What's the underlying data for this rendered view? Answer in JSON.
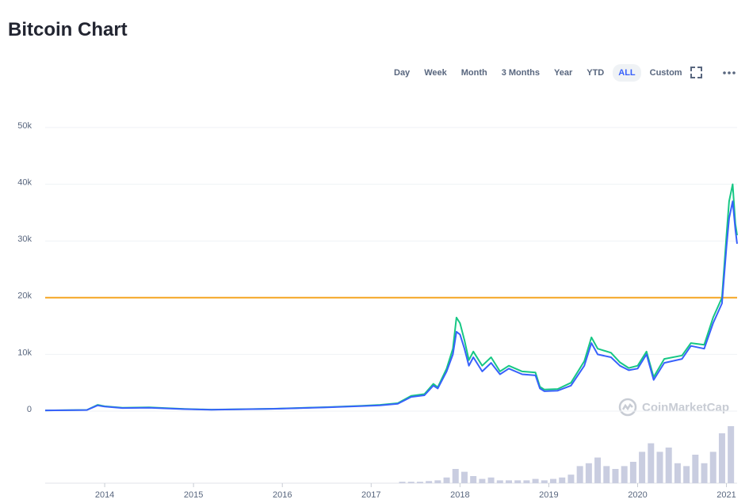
{
  "title": "Bitcoin Chart",
  "toolbar": {
    "buttons": [
      "Day",
      "Week",
      "Month",
      "3 Months",
      "Year",
      "YTD",
      "ALL",
      "Custom"
    ],
    "active": "ALL"
  },
  "chart_data": {
    "type": "line",
    "watermark": "CoinMarketCap",
    "x": [
      2013.33,
      2013.8,
      2013.92,
      2014.0,
      2014.2,
      2014.5,
      2014.9,
      2015.2,
      2015.9,
      2016.5,
      2016.9,
      2017.1,
      2017.3,
      2017.45,
      2017.6,
      2017.7,
      2017.75,
      2017.85,
      2017.92,
      2017.96,
      2018.0,
      2018.05,
      2018.1,
      2018.15,
      2018.25,
      2018.35,
      2018.45,
      2018.55,
      2018.7,
      2018.85,
      2018.9,
      2018.95,
      2019.1,
      2019.25,
      2019.4,
      2019.48,
      2019.55,
      2019.7,
      2019.8,
      2019.9,
      2020.0,
      2020.1,
      2020.18,
      2020.3,
      2020.5,
      2020.6,
      2020.75,
      2020.85,
      2020.95,
      2021.0,
      2021.03,
      2021.07,
      2021.1,
      2021.12
    ],
    "series": [
      {
        "color": "#16c784",
        "values": [
          130,
          210,
          1100,
          850,
          600,
          650,
          380,
          260,
          420,
          700,
          950,
          1100,
          1400,
          2700,
          3000,
          4800,
          4200,
          7500,
          11000,
          16500,
          15500,
          12500,
          9000,
          10500,
          8000,
          9500,
          7000,
          8000,
          7000,
          6800,
          4300,
          3800,
          3900,
          5000,
          8800,
          13000,
          11000,
          10300,
          8600,
          7600,
          8000,
          10500,
          6000,
          9200,
          9800,
          12000,
          11700,
          16500,
          20000,
          31000,
          37000,
          40000,
          33000,
          31000
        ]
      },
      {
        "color": "#3861fb",
        "values": [
          120,
          200,
          1000,
          800,
          550,
          600,
          350,
          250,
          400,
          650,
          900,
          1000,
          1300,
          2500,
          2800,
          4500,
          4000,
          7000,
          10000,
          14000,
          13500,
          11000,
          8000,
          9500,
          7000,
          8500,
          6500,
          7500,
          6500,
          6300,
          4000,
          3500,
          3600,
          4500,
          8000,
          12000,
          10000,
          9500,
          8000,
          7200,
          7500,
          10000,
          5500,
          8500,
          9200,
          11500,
          11000,
          15500,
          19000,
          29000,
          34000,
          37000,
          32000,
          29500
        ]
      }
    ],
    "reference_line": {
      "value": 20000,
      "color": "#f5a623"
    },
    "volume": {
      "color": "#c9cde0",
      "x": [
        2017.35,
        2017.45,
        2017.55,
        2017.65,
        2017.75,
        2017.85,
        2017.95,
        2018.05,
        2018.15,
        2018.25,
        2018.35,
        2018.45,
        2018.55,
        2018.65,
        2018.75,
        2018.85,
        2018.95,
        2019.05,
        2019.15,
        2019.25,
        2019.35,
        2019.45,
        2019.55,
        2019.65,
        2019.75,
        2019.85,
        2019.95,
        2020.05,
        2020.15,
        2020.25,
        2020.35,
        2020.45,
        2020.55,
        2020.65,
        2020.75,
        2020.85,
        2020.95,
        2021.05
      ],
      "values": [
        1,
        1,
        1,
        1.5,
        2,
        4,
        10,
        8,
        5,
        3,
        4,
        2,
        2,
        2,
        2,
        3,
        2,
        3,
        4,
        6,
        12,
        14,
        18,
        12,
        10,
        12,
        15,
        22,
        28,
        22,
        25,
        14,
        12,
        20,
        14,
        22,
        35,
        40
      ]
    },
    "xlim": [
      2013.33,
      2021.12
    ],
    "xticks": [
      2014,
      2015,
      2016,
      2017,
      2018,
      2019,
      2020,
      2021
    ],
    "ylim": [
      0,
      50000
    ],
    "yticks": [
      0,
      {
        "value": 10000,
        "label": "10k"
      },
      {
        "value": 20000,
        "label": "20k"
      },
      {
        "value": 30000,
        "label": "30k"
      },
      {
        "value": 40000,
        "label": "40k"
      },
      {
        "value": 50000,
        "label": "50k"
      }
    ],
    "grid": true
  }
}
